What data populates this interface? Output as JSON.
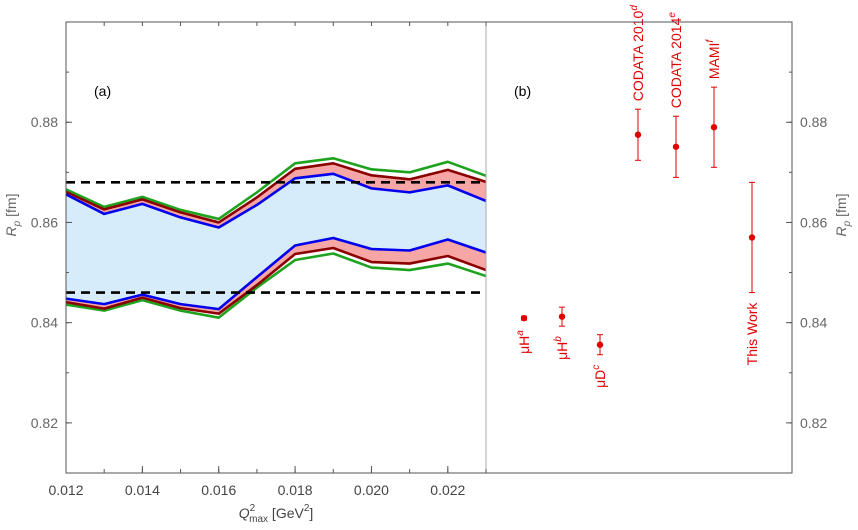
{
  "chart_data": {
    "type": "line",
    "ylim": [
      0.81,
      0.9
    ],
    "yticks": [
      0.82,
      0.84,
      0.86,
      0.88
    ],
    "ytick_labels": [
      "0.82",
      "0.84",
      "0.86",
      "0.88"
    ],
    "ylabel_left": "R",
    "ylabel_left_sub": "p",
    "ylabel_left_unit": " [fm]",
    "ylabel_right": "R",
    "ylabel_right_sub": "p",
    "ylabel_right_unit": " [fm]",
    "panel_a": {
      "label": "(a)",
      "xlim": [
        0.012,
        0.023
      ],
      "xticks": [
        0.012,
        0.014,
        0.016,
        0.018,
        0.02,
        0.022
      ],
      "xtick_labels": [
        "0.012",
        "0.014",
        "0.016",
        "0.018",
        "0.020",
        "0.022"
      ],
      "xlabel": {
        "main": "Q",
        "sup": "2",
        "sub": "max",
        "unit_pre": " [GeV",
        "unit_sup": "2",
        "unit_post": "]"
      },
      "x": [
        0.012,
        0.013,
        0.014,
        0.015,
        0.016,
        0.017,
        0.018,
        0.019,
        0.02,
        0.021,
        0.022,
        0.023
      ],
      "series": [
        {
          "role": "blue_upper",
          "color": "#0000ee",
          "values": [
            0.8656,
            0.8617,
            0.8637,
            0.861,
            0.859,
            0.8635,
            0.8688,
            0.8697,
            0.8668,
            0.866,
            0.8674,
            0.8643
          ]
        },
        {
          "role": "blue_lower",
          "color": "#0000ee",
          "values": [
            0.8448,
            0.8437,
            0.8456,
            0.8437,
            0.8427,
            0.8491,
            0.8554,
            0.8569,
            0.8547,
            0.8544,
            0.8566,
            0.854
          ]
        },
        {
          "role": "red_upper",
          "color": "#8b0000",
          "values": [
            0.8661,
            0.8626,
            0.8646,
            0.862,
            0.86,
            0.865,
            0.8707,
            0.8718,
            0.8694,
            0.8686,
            0.8705,
            0.8681
          ]
        },
        {
          "role": "red_lower",
          "color": "#8b0000",
          "values": [
            0.8441,
            0.8428,
            0.845,
            0.8429,
            0.8418,
            0.8475,
            0.8537,
            0.8549,
            0.8521,
            0.8518,
            0.8533,
            0.8505
          ]
        },
        {
          "role": "green_upper",
          "color": "#1fa31f",
          "values": [
            0.8666,
            0.8631,
            0.8651,
            0.8625,
            0.8607,
            0.866,
            0.8718,
            0.8728,
            0.8706,
            0.87,
            0.8721,
            0.8693
          ]
        },
        {
          "role": "green_lower",
          "color": "#1fa31f",
          "values": [
            0.8436,
            0.8424,
            0.8445,
            0.8424,
            0.841,
            0.847,
            0.8525,
            0.8538,
            0.851,
            0.8505,
            0.8518,
            0.8493
          ]
        }
      ],
      "hlines": [
        0.868,
        0.846
      ],
      "hline_color": "#000000",
      "blue_fill": "#d6ecfb",
      "red_fill": "#f7a6a6"
    },
    "panel_b": {
      "label": "(b)",
      "point_color": "#e00000",
      "points": [
        {
          "label": "μH",
          "sup": "a",
          "value": 0.8409,
          "err": 0.0004
        },
        {
          "label": "μH",
          "sup": "b",
          "value": 0.8412,
          "err": 0.0019
        },
        {
          "label": "μD",
          "sup": "c",
          "value": 0.8356,
          "err": 0.002
        },
        {
          "label": "CODATA 2010",
          "sup": "d",
          "value": 0.8775,
          "err": 0.0051
        },
        {
          "label": "CODATA 2014",
          "sup": "e",
          "value": 0.8751,
          "err": 0.0061
        },
        {
          "label": "MAMI",
          "sup": "f",
          "value": 0.879,
          "err": 0.008
        },
        {
          "label": "This Work",
          "sup": "",
          "value": 0.857,
          "err": 0.011
        }
      ]
    }
  }
}
